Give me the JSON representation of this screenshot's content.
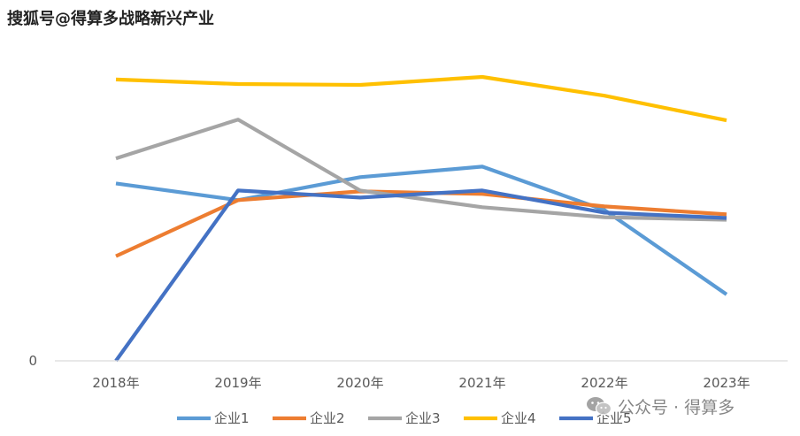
{
  "watermark_top": "搜狐号@得算多战略新兴产业",
  "watermark_bottom": {
    "text": "公众号 · 得算多",
    "icon": "wechat-icon"
  },
  "chart_data": {
    "type": "line",
    "title": "",
    "xlabel": "",
    "ylabel": "",
    "categories": [
      "2018年",
      "2019年",
      "2020年",
      "2021年",
      "2022年",
      "2023年"
    ],
    "y_tick_labels": [
      "0"
    ],
    "ylim": [
      0,
      100
    ],
    "grid": false,
    "legend_position": "bottom",
    "series": [
      {
        "name": "企业1",
        "color": "#5B9BD5",
        "values": [
          62.5,
          56.6,
          64.7,
          68.4,
          53.1,
          23.4
        ]
      },
      {
        "name": "企业2",
        "color": "#ED7D31",
        "values": [
          36.9,
          56.6,
          59.7,
          58.8,
          54.4,
          51.6
        ]
      },
      {
        "name": "企业3",
        "color": "#A5A5A5",
        "values": [
          71.3,
          85.0,
          60.0,
          54.1,
          50.6,
          49.7
        ]
      },
      {
        "name": "企业4",
        "color": "#FFC000",
        "values": [
          99.1,
          97.5,
          97.2,
          100.0,
          93.4,
          84.7
        ]
      },
      {
        "name": "企业5",
        "color": "#4472C4",
        "values": [
          0.0,
          60.0,
          57.5,
          60.0,
          52.2,
          50.3
        ]
      }
    ]
  }
}
